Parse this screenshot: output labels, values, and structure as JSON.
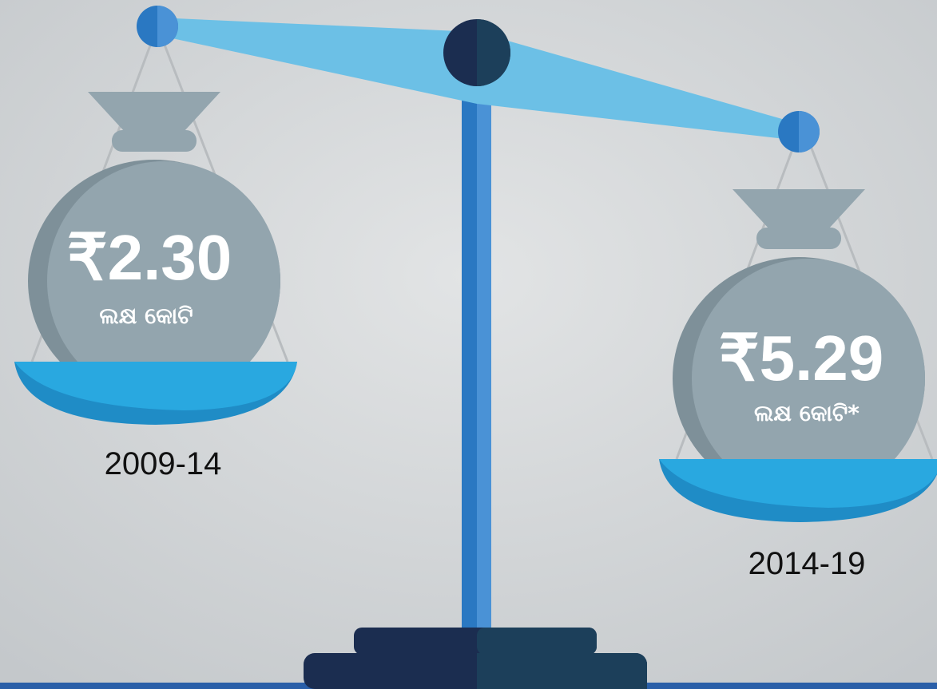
{
  "pans": [
    {
      "amount": "₹2.30",
      "unit": "ଲକ୍ଷ କୋଟି",
      "period": "2009-14"
    },
    {
      "amount": "₹5.29",
      "unit": "ଲକ୍ଷ କୋଟି*",
      "period": "2014-19"
    }
  ]
}
